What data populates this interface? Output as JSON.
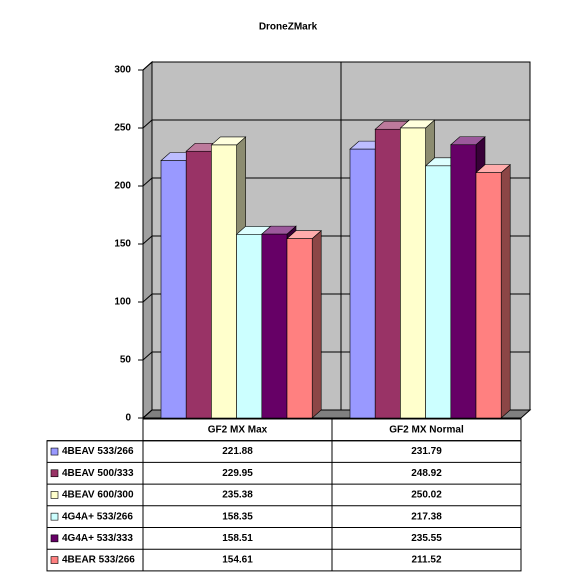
{
  "chart_data": {
    "type": "bar",
    "title": "DroneZMark",
    "categories": [
      "GF2 MX Max",
      "GF2 MX Normal"
    ],
    "series": [
      {
        "name": "4BEAV 533/266",
        "color": "#9999ff",
        "values": [
          221.88,
          231.79
        ]
      },
      {
        "name": "4BEAV 500/333",
        "color": "#993366",
        "values": [
          229.95,
          248.92
        ]
      },
      {
        "name": "4BEAV 600/300",
        "color": "#ffffcc",
        "values": [
          235.38,
          250.02
        ]
      },
      {
        "name": "4G4A+ 533/266",
        "color": "#ccffff",
        "values": [
          158.35,
          217.38
        ]
      },
      {
        "name": "4G4A+ 533/333",
        "color": "#660066",
        "values": [
          158.51,
          235.55
        ]
      },
      {
        "name": "4BEAR 533/266",
        "color": "#ff8080",
        "values": [
          154.61,
          211.52
        ]
      }
    ],
    "ylim": [
      0,
      300
    ],
    "yticks": [
      0,
      50,
      100,
      150,
      200,
      250,
      300
    ],
    "grid": true
  }
}
